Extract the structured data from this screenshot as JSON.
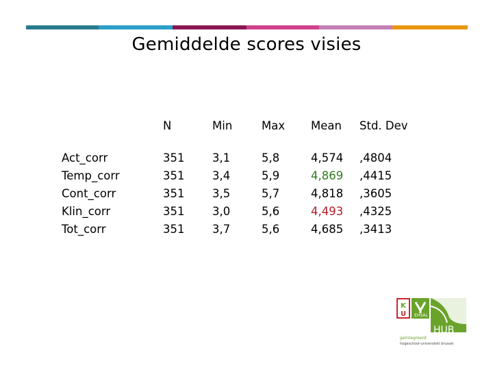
{
  "colors": {
    "stripes": [
      "#2b7b8f",
      "#2a9fc8",
      "#8a1752",
      "#d0428b",
      "#c47fb5",
      "#e8960f"
    ],
    "green_value": "#2e7d1e",
    "red_value": "#b01e28",
    "logo_green": "#6aa32b",
    "logo_red": "#c7262d"
  },
  "title": "Gemiddelde scores visies",
  "table": {
    "headers": [
      "",
      "N",
      "Min",
      "Max",
      "Mean",
      "Std. Dev"
    ],
    "rows": [
      {
        "label": "Act_corr",
        "n": "351",
        "min": "3,1",
        "max": "5,8",
        "mean": "4,574",
        "sd": ",4804"
      },
      {
        "label": "Temp_corr",
        "n": "351",
        "min": "3,4",
        "max": "5,9",
        "mean": "4,869",
        "sd": ",4415"
      },
      {
        "label": "Cont_corr",
        "n": "351",
        "min": "3,5",
        "max": "5,7",
        "mean": "4,818",
        "sd": ",3605"
      },
      {
        "label": "Klin_corr",
        "n": "351",
        "min": "3,0",
        "max": "5,6",
        "mean": "4,493",
        "sd": ",4325"
      },
      {
        "label": "Tot_corr",
        "n": "351",
        "min": "3,7",
        "max": "5,6",
        "mean": "4,685",
        "sd": ",3413"
      }
    ]
  },
  "logo": {
    "ku": "KU",
    "ehsal": "EHSAL",
    "hub": "HUB",
    "line1": "geïntegreerd",
    "line2": "hogeschool-universiteit brussel"
  }
}
